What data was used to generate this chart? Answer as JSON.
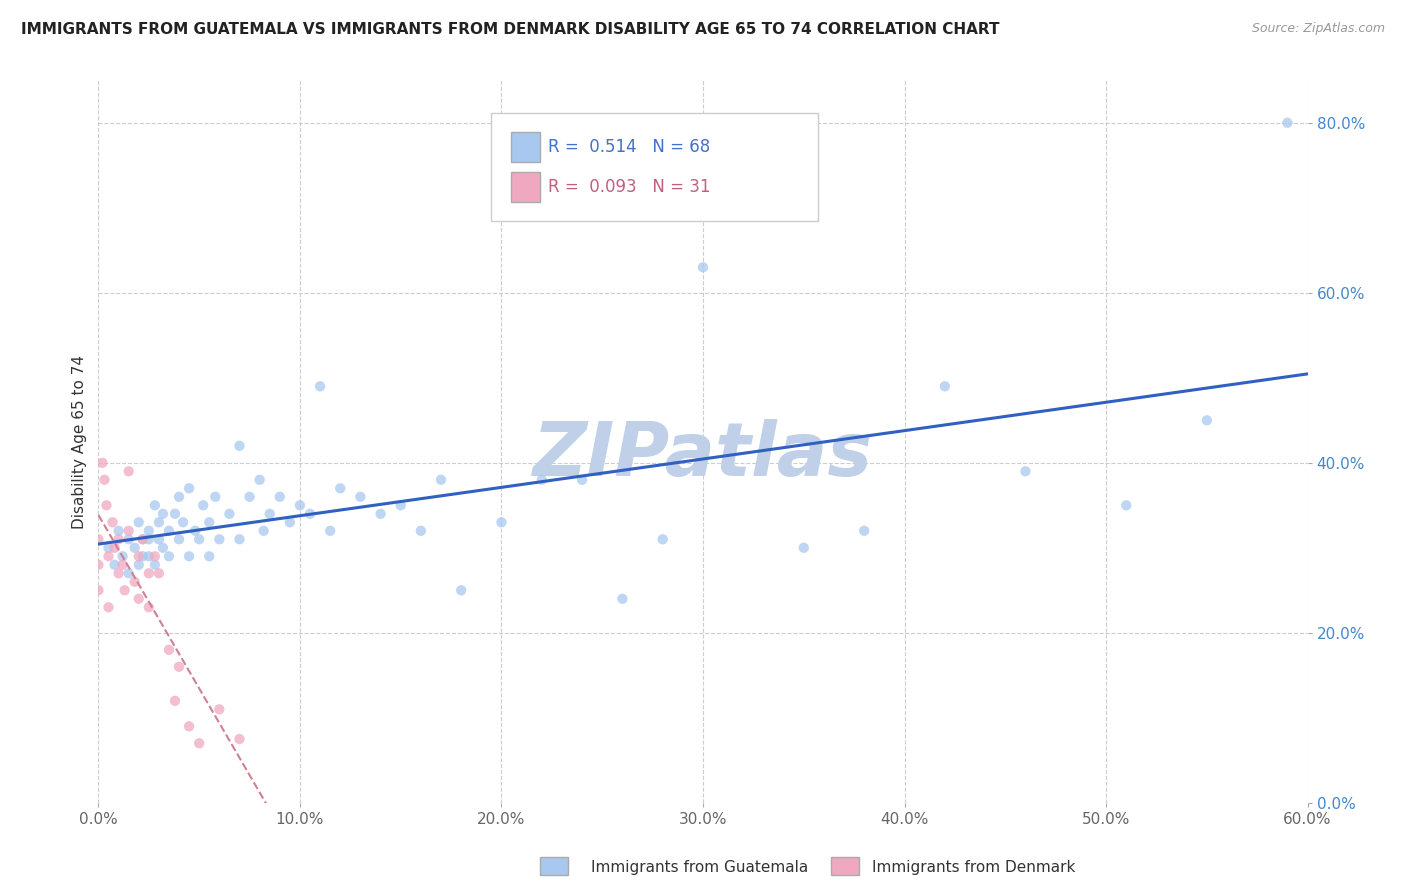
{
  "title": "IMMIGRANTS FROM GUATEMALA VS IMMIGRANTS FROM DENMARK DISABILITY AGE 65 TO 74 CORRELATION CHART",
  "source": "Source: ZipAtlas.com",
  "ylabel": "Disability Age 65 to 74",
  "xlim": [
    0.0,
    0.6
  ],
  "ylim": [
    0.0,
    0.85
  ],
  "xticks": [
    0.0,
    0.1,
    0.2,
    0.3,
    0.4,
    0.5,
    0.6
  ],
  "yticks": [
    0.0,
    0.2,
    0.4,
    0.6,
    0.8
  ],
  "xtick_labels": [
    "0.0%",
    "10.0%",
    "20.0%",
    "30.0%",
    "40.0%",
    "50.0%",
    "60.0%"
  ],
  "ytick_labels": [
    "0.0%",
    "20.0%",
    "40.0%",
    "60.0%",
    "80.0%"
  ],
  "guatemala_color": "#a8c8f0",
  "denmark_color": "#f0a8c0",
  "guatemala_line_color": "#3060c0",
  "denmark_line_color": "#d08090",
  "R_guatemala": 0.514,
  "N_guatemala": 68,
  "R_denmark": 0.093,
  "N_denmark": 31,
  "legend_label_guatemala": "Immigrants from Guatemala",
  "legend_label_denmark": "Immigrants from Denmark",
  "background_color": "#ffffff",
  "grid_color": "#c8c8c8",
  "watermark_text": "ZIPatlas",
  "watermark_color": "#c0d0e8",
  "scatter_alpha": 0.75,
  "scatter_size": 55,
  "guatemala_x": [
    0.005,
    0.008,
    0.01,
    0.012,
    0.015,
    0.015,
    0.018,
    0.02,
    0.02,
    0.022,
    0.022,
    0.025,
    0.025,
    0.025,
    0.028,
    0.028,
    0.03,
    0.03,
    0.032,
    0.032,
    0.035,
    0.035,
    0.038,
    0.04,
    0.04,
    0.042,
    0.045,
    0.045,
    0.048,
    0.05,
    0.052,
    0.055,
    0.055,
    0.058,
    0.06,
    0.065,
    0.07,
    0.07,
    0.075,
    0.08,
    0.082,
    0.085,
    0.09,
    0.095,
    0.1,
    0.105,
    0.11,
    0.115,
    0.12,
    0.13,
    0.14,
    0.15,
    0.16,
    0.17,
    0.18,
    0.2,
    0.22,
    0.24,
    0.26,
    0.28,
    0.3,
    0.35,
    0.38,
    0.42,
    0.46,
    0.51,
    0.55,
    0.59
  ],
  "guatemala_y": [
    0.3,
    0.28,
    0.32,
    0.29,
    0.31,
    0.27,
    0.3,
    0.33,
    0.28,
    0.31,
    0.29,
    0.32,
    0.29,
    0.31,
    0.35,
    0.28,
    0.31,
    0.33,
    0.3,
    0.34,
    0.32,
    0.29,
    0.34,
    0.31,
    0.36,
    0.33,
    0.29,
    0.37,
    0.32,
    0.31,
    0.35,
    0.29,
    0.33,
    0.36,
    0.31,
    0.34,
    0.42,
    0.31,
    0.36,
    0.38,
    0.32,
    0.34,
    0.36,
    0.33,
    0.35,
    0.34,
    0.49,
    0.32,
    0.37,
    0.36,
    0.34,
    0.35,
    0.32,
    0.38,
    0.25,
    0.33,
    0.38,
    0.38,
    0.24,
    0.31,
    0.63,
    0.3,
    0.32,
    0.49,
    0.39,
    0.35,
    0.45,
    0.8
  ],
  "denmark_x": [
    0.0,
    0.0,
    0.0,
    0.002,
    0.003,
    0.004,
    0.005,
    0.005,
    0.007,
    0.008,
    0.01,
    0.01,
    0.012,
    0.013,
    0.015,
    0.015,
    0.018,
    0.02,
    0.02,
    0.022,
    0.025,
    0.025,
    0.028,
    0.03,
    0.035,
    0.038,
    0.04,
    0.045,
    0.05,
    0.06,
    0.07
  ],
  "denmark_y": [
    0.28,
    0.25,
    0.31,
    0.4,
    0.38,
    0.35,
    0.29,
    0.23,
    0.33,
    0.3,
    0.27,
    0.31,
    0.28,
    0.25,
    0.39,
    0.32,
    0.26,
    0.29,
    0.24,
    0.31,
    0.27,
    0.23,
    0.29,
    0.27,
    0.18,
    0.12,
    0.16,
    0.09,
    0.07,
    0.11,
    0.075
  ]
}
